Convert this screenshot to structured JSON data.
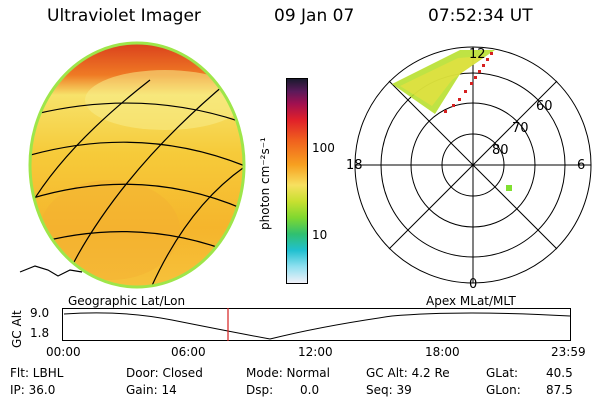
{
  "header": {
    "title": "Ultraviolet Imager",
    "date": "09 Jan 07",
    "time": "07:52:34 UT"
  },
  "colorbar": {
    "label": "photon cm⁻²s⁻¹",
    "ticks": [
      "100",
      "10"
    ]
  },
  "polar": {
    "mlt_labels": [
      "12",
      "18",
      "6",
      "0"
    ],
    "lat_labels": [
      "60",
      "70",
      "80"
    ]
  },
  "panel_labels": {
    "left": "Geographic Lat/Lon",
    "right": "Apex MLat/MLT"
  },
  "alt_plot": {
    "axis_title": "GC Alt",
    "ymax": "9.0",
    "ymin": "1.8",
    "xticks": [
      "00:00",
      "06:00",
      "12:00",
      "18:00",
      "23:59"
    ]
  },
  "status": {
    "flt": "Flt: LBHL",
    "ip": "IP: 36.0",
    "door": "Door: Closed",
    "gain": "Gain: 14",
    "mode": "Mode: Normal",
    "dsp_label": "Dsp:",
    "dsp_value": "0.0",
    "gcalt": "GC Alt: 4.2 Re",
    "seq": "Seq: 39",
    "glat_label": "GLat:",
    "glat_value": "40.5",
    "glon_label": "GLon:",
    "glon_value": "87.5"
  },
  "colors": {
    "aurora_bright": "#d83a1c",
    "aurora_mid": "#f5a623",
    "glow": "#f7d83a",
    "limb": "#9ee64a",
    "marker": "#d62020"
  }
}
